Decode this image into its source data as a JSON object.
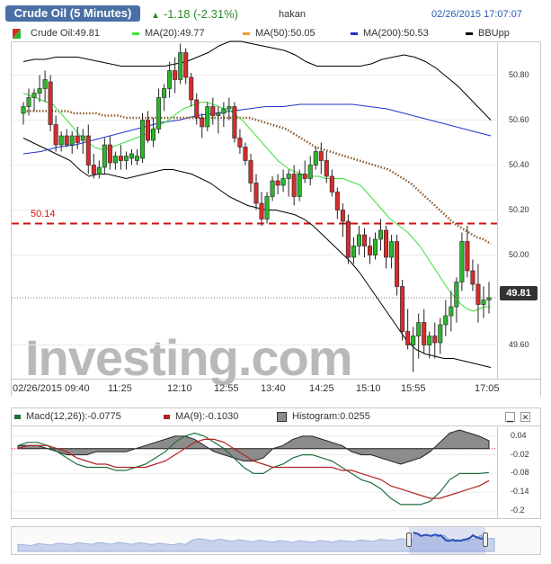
{
  "header": {
    "title": "Crude Oil (5 Minutes)",
    "change": "-1.18 (-2.31%)",
    "user": "hakan",
    "datetime": "02/26/2015 17:07:07"
  },
  "main_legend": {
    "symbol_label": "Crude Oil:49.81",
    "ma20_label": "MA(20):49.77",
    "ma50_label": "MA(50):50.05",
    "ma200_label": "MA(200):50.53",
    "bb_label": "BBUpp"
  },
  "macd_legend": {
    "macd_label": "Macd(12,26)):-0.0775",
    "signal_label": "MA(9):-0.1030",
    "hist_label": "Histogram:0.0255"
  },
  "price_tag": "49.81",
  "level_label": "50.14",
  "watermark": {
    "main": "Investing",
    "suffix": ".com"
  },
  "colors": {
    "up": "#2db52d",
    "down": "#d62c2c",
    "ma20": "#3be23b",
    "ma50_dot": "#8b5a2b",
    "ma50_legend": "#f0a030",
    "ma200": "#2233cc",
    "bb": "#000000",
    "macd": "#1e6e3e",
    "signal": "#b22222",
    "hist": "#8c8c8c",
    "level": "#d11111"
  },
  "chart_data": {
    "type": "candlestick",
    "y_ticks": [
      "50.80",
      "50.60",
      "50.40",
      "50.20",
      "50.00",
      "49.60"
    ],
    "ylim": [
      49.45,
      50.95
    ],
    "x_ticks": [
      "02/26/2015 09:40",
      "11:25",
      "12:10",
      "12:55",
      "13:40",
      "14:25",
      "15:10",
      "15:55",
      "17:05"
    ],
    "horizontal_level": 50.14,
    "last_price": 49.81,
    "candles": [
      [
        50.63,
        50.68,
        50.58,
        50.66
      ],
      [
        50.66,
        50.74,
        50.62,
        50.7
      ],
      [
        50.7,
        50.74,
        50.64,
        50.72
      ],
      [
        50.72,
        50.8,
        50.68,
        50.74
      ],
      [
        50.74,
        50.82,
        50.68,
        50.78
      ],
      [
        50.77,
        50.8,
        50.55,
        50.58
      ],
      [
        50.58,
        50.62,
        50.46,
        50.49
      ],
      [
        50.49,
        50.55,
        50.46,
        50.53
      ],
      [
        50.53,
        50.56,
        50.48,
        50.49
      ],
      [
        50.49,
        50.55,
        50.45,
        50.53
      ],
      [
        50.53,
        50.57,
        50.47,
        50.5
      ],
      [
        50.51,
        50.56,
        50.45,
        50.53
      ],
      [
        50.53,
        50.58,
        50.36,
        50.4
      ],
      [
        50.4,
        50.45,
        50.34,
        50.36
      ],
      [
        50.36,
        50.42,
        50.34,
        50.39
      ],
      [
        50.39,
        50.52,
        50.36,
        50.49
      ],
      [
        50.49,
        50.53,
        50.38,
        50.41
      ],
      [
        50.41,
        50.46,
        50.38,
        50.44
      ],
      [
        50.44,
        50.49,
        50.38,
        50.42
      ],
      [
        50.42,
        50.46,
        50.38,
        50.44
      ],
      [
        50.43,
        50.47,
        50.4,
        50.45
      ],
      [
        50.42,
        50.47,
        50.4,
        50.44
      ],
      [
        50.43,
        50.63,
        50.41,
        50.6
      ],
      [
        50.6,
        50.64,
        50.5,
        50.51
      ],
      [
        50.51,
        50.61,
        50.48,
        50.56
      ],
      [
        50.56,
        50.74,
        50.54,
        50.7
      ],
      [
        50.7,
        50.76,
        50.64,
        50.74
      ],
      [
        50.74,
        50.86,
        50.7,
        50.82
      ],
      [
        50.82,
        50.88,
        50.72,
        50.78
      ],
      [
        50.78,
        50.94,
        50.76,
        50.9
      ],
      [
        50.9,
        50.92,
        50.76,
        50.79
      ],
      [
        50.79,
        50.81,
        50.66,
        50.69
      ],
      [
        50.69,
        50.72,
        50.58,
        50.61
      ],
      [
        50.61,
        50.63,
        50.52,
        50.57
      ],
      [
        50.57,
        50.68,
        50.55,
        50.66
      ],
      [
        50.66,
        50.7,
        50.58,
        50.62
      ],
      [
        50.62,
        50.66,
        50.54,
        50.63
      ],
      [
        50.63,
        50.68,
        50.57,
        50.65
      ],
      [
        50.65,
        50.7,
        50.6,
        50.66
      ],
      [
        50.66,
        50.68,
        50.5,
        50.52
      ],
      [
        50.52,
        50.56,
        50.45,
        50.48
      ],
      [
        50.48,
        50.5,
        50.4,
        50.42
      ],
      [
        50.42,
        50.45,
        50.28,
        50.32
      ],
      [
        50.32,
        50.36,
        50.2,
        50.23
      ],
      [
        50.23,
        50.28,
        50.13,
        50.16
      ],
      [
        50.16,
        50.28,
        50.14,
        50.26
      ],
      [
        50.26,
        50.35,
        50.24,
        50.33
      ],
      [
        50.33,
        50.36,
        50.27,
        50.31
      ],
      [
        50.31,
        50.38,
        50.28,
        50.34
      ],
      [
        50.34,
        50.38,
        50.26,
        50.36
      ],
      [
        50.36,
        50.4,
        50.22,
        50.26
      ],
      [
        50.26,
        50.38,
        50.24,
        50.36
      ],
      [
        50.36,
        50.42,
        50.32,
        50.34
      ],
      [
        50.34,
        50.44,
        50.31,
        50.4
      ],
      [
        50.4,
        50.48,
        50.38,
        50.46
      ],
      [
        50.46,
        50.5,
        50.36,
        50.42
      ],
      [
        50.42,
        50.46,
        50.32,
        50.35
      ],
      [
        50.35,
        50.38,
        50.26,
        50.28
      ],
      [
        50.28,
        50.3,
        50.16,
        50.2
      ],
      [
        50.2,
        50.23,
        50.08,
        50.15
      ],
      [
        50.15,
        50.18,
        49.96,
        49.99
      ],
      [
        49.99,
        50.08,
        49.96,
        50.04
      ],
      [
        50.04,
        50.13,
        50.0,
        50.09
      ],
      [
        50.09,
        50.12,
        49.99,
        50.04
      ],
      [
        50.04,
        50.08,
        49.96,
        50.0
      ],
      [
        50.0,
        50.1,
        49.98,
        50.07
      ],
      [
        50.07,
        50.16,
        50.02,
        50.11
      ],
      [
        50.11,
        50.13,
        49.94,
        49.99
      ],
      [
        49.99,
        50.09,
        49.94,
        50.06
      ],
      [
        50.06,
        50.09,
        49.82,
        49.86
      ],
      [
        49.86,
        49.89,
        49.62,
        49.66
      ],
      [
        49.66,
        49.76,
        49.58,
        49.6
      ],
      [
        49.6,
        49.68,
        49.48,
        49.64
      ],
      [
        49.64,
        49.74,
        49.54,
        49.7
      ],
      [
        49.7,
        49.76,
        49.56,
        49.6
      ],
      [
        49.6,
        49.66,
        49.54,
        49.64
      ],
      [
        49.64,
        49.7,
        49.54,
        49.61
      ],
      [
        49.61,
        49.72,
        49.56,
        49.69
      ],
      [
        49.69,
        49.8,
        49.64,
        49.73
      ],
      [
        49.73,
        49.84,
        49.66,
        49.77
      ],
      [
        49.77,
        49.9,
        49.7,
        49.88
      ],
      [
        49.88,
        50.1,
        49.84,
        50.06
      ],
      [
        50.06,
        50.13,
        49.9,
        49.93
      ],
      [
        49.93,
        49.98,
        49.84,
        49.87
      ],
      [
        49.87,
        49.96,
        49.7,
        49.78
      ],
      [
        49.78,
        49.86,
        49.72,
        49.8
      ],
      [
        49.8,
        49.88,
        49.74,
        49.81
      ]
    ],
    "ma20": [
      50.72,
      50.71,
      50.7,
      50.69,
      50.68,
      50.67,
      50.64,
      50.61,
      50.58,
      50.55,
      50.52,
      50.5,
      50.48,
      50.47,
      50.47,
      50.48,
      50.49,
      50.5,
      50.51,
      50.52,
      50.53,
      50.54,
      50.56,
      50.58,
      50.59,
      50.61,
      50.63,
      50.65,
      50.66,
      50.67,
      50.68,
      50.68,
      50.67,
      50.66,
      50.65,
      50.64,
      50.62,
      50.6,
      50.57,
      50.54,
      50.51,
      50.48,
      50.45,
      50.42,
      50.4,
      50.38,
      50.37,
      50.36,
      50.35,
      50.35,
      50.35,
      50.34,
      50.34,
      50.34,
      50.34,
      50.33,
      50.32,
      50.31,
      50.28,
      50.25,
      50.22,
      50.19,
      50.16,
      50.14,
      50.12,
      50.1,
      50.07,
      50.04,
      50.0,
      49.96,
      49.92,
      49.88,
      49.84,
      49.81,
      49.78,
      49.76,
      49.75,
      49.76,
      49.77,
      49.77
    ],
    "ma50": [
      50.64,
      50.64,
      50.64,
      50.64,
      50.64,
      50.64,
      50.64,
      50.63,
      50.63,
      50.63,
      50.63,
      50.62,
      50.62,
      50.62,
      50.61,
      50.61,
      50.61,
      50.61,
      50.61,
      50.61,
      50.61,
      50.61,
      50.61,
      50.61,
      50.61,
      50.61,
      50.61,
      50.61,
      50.61,
      50.61,
      50.61,
      50.61,
      50.6,
      50.59,
      50.58,
      50.57,
      50.56,
      50.54,
      50.52,
      50.5,
      50.48,
      50.47,
      50.46,
      50.45,
      50.44,
      50.43,
      50.42,
      50.41,
      50.4,
      50.39,
      50.38,
      50.36,
      50.34,
      50.32,
      50.29,
      50.26,
      50.23,
      50.2,
      50.17,
      50.14,
      50.12,
      50.1,
      50.08,
      50.07,
      50.05
    ],
    "ma200": [
      50.45,
      50.46,
      50.48,
      50.49,
      50.51,
      50.53,
      50.55,
      50.57,
      50.59,
      50.6,
      50.62,
      50.63,
      50.64,
      50.65,
      50.66,
      50.66,
      50.67,
      50.67,
      50.67,
      50.67,
      50.66,
      50.65,
      50.63,
      50.61,
      50.59,
      50.57,
      50.55,
      50.53
    ],
    "bb_upper": [
      50.86,
      50.87,
      50.87,
      50.88,
      50.88,
      50.88,
      50.87,
      50.86,
      50.85,
      50.84,
      50.84,
      50.84,
      50.84,
      50.84,
      50.85,
      50.86,
      50.88,
      50.9,
      50.93,
      50.95,
      50.95,
      50.94,
      50.93,
      50.92,
      50.91,
      50.89,
      50.86,
      50.84,
      50.84,
      50.84,
      50.84,
      50.84,
      50.85,
      50.87,
      50.88,
      50.89,
      50.88,
      50.86,
      50.83,
      50.79,
      50.75,
      50.7,
      50.65,
      50.6
    ],
    "bb_lower": [
      50.52,
      50.5,
      50.48,
      50.46,
      50.44,
      50.42,
      50.38,
      50.35,
      50.36,
      50.36,
      50.35,
      50.34,
      50.35,
      50.36,
      50.37,
      50.38,
      50.38,
      50.37,
      50.36,
      50.34,
      50.32,
      50.29,
      50.26,
      50.24,
      50.22,
      50.21,
      50.2,
      50.2,
      50.19,
      50.18,
      50.16,
      50.13,
      50.09,
      50.05,
      50.01,
      49.97,
      49.92,
      49.86,
      49.8,
      49.74,
      49.68,
      49.62,
      49.58,
      49.56,
      49.55,
      49.54,
      49.54,
      49.53,
      49.52,
      49.51,
      49.5
    ],
    "macd_panel": {
      "y_ticks": [
        "0.04",
        "-0.02",
        "-0.08",
        "-0.14",
        "-0.2"
      ],
      "ylim": [
        -0.215,
        0.06
      ],
      "macd": [
        0.01,
        0.02,
        0.02,
        0.01,
        -0.01,
        -0.03,
        -0.05,
        -0.06,
        -0.06,
        -0.06,
        -0.07,
        -0.07,
        -0.06,
        -0.05,
        -0.03,
        -0.01,
        0.02,
        0.04,
        0.05,
        0.04,
        0.02,
        0.0,
        -0.03,
        -0.06,
        -0.08,
        -0.08,
        -0.06,
        -0.05,
        -0.03,
        -0.02,
        -0.02,
        -0.03,
        -0.04,
        -0.06,
        -0.08,
        -0.1,
        -0.11,
        -0.13,
        -0.16,
        -0.18,
        -0.18,
        -0.18,
        -0.17,
        -0.14,
        -0.1,
        -0.08,
        -0.08,
        -0.08,
        -0.077
      ],
      "signal": [
        0.0,
        0.01,
        0.01,
        0.01,
        0.0,
        -0.01,
        -0.03,
        -0.04,
        -0.05,
        -0.05,
        -0.06,
        -0.06,
        -0.06,
        -0.06,
        -0.05,
        -0.04,
        -0.02,
        0.0,
        0.02,
        0.03,
        0.03,
        0.02,
        0.0,
        -0.02,
        -0.04,
        -0.05,
        -0.06,
        -0.06,
        -0.06,
        -0.06,
        -0.06,
        -0.06,
        -0.06,
        -0.07,
        -0.07,
        -0.08,
        -0.09,
        -0.1,
        -0.12,
        -0.13,
        -0.14,
        -0.15,
        -0.16,
        -0.16,
        -0.15,
        -0.14,
        -0.13,
        -0.12,
        -0.103
      ],
      "histogram": [
        0.01,
        0.01,
        0.01,
        0.0,
        -0.01,
        -0.02,
        -0.02,
        -0.02,
        -0.01,
        -0.01,
        -0.01,
        -0.01,
        0.0,
        0.01,
        0.02,
        0.03,
        0.04,
        0.04,
        0.03,
        0.01,
        -0.01,
        -0.02,
        -0.03,
        -0.04,
        -0.04,
        -0.03,
        0.0,
        0.01,
        0.03,
        0.04,
        0.04,
        0.03,
        0.02,
        0.01,
        -0.01,
        -0.02,
        -0.02,
        -0.03,
        -0.04,
        -0.05,
        -0.04,
        -0.03,
        -0.01,
        0.02,
        0.05,
        0.06,
        0.05,
        0.04,
        0.0255
      ]
    }
  }
}
